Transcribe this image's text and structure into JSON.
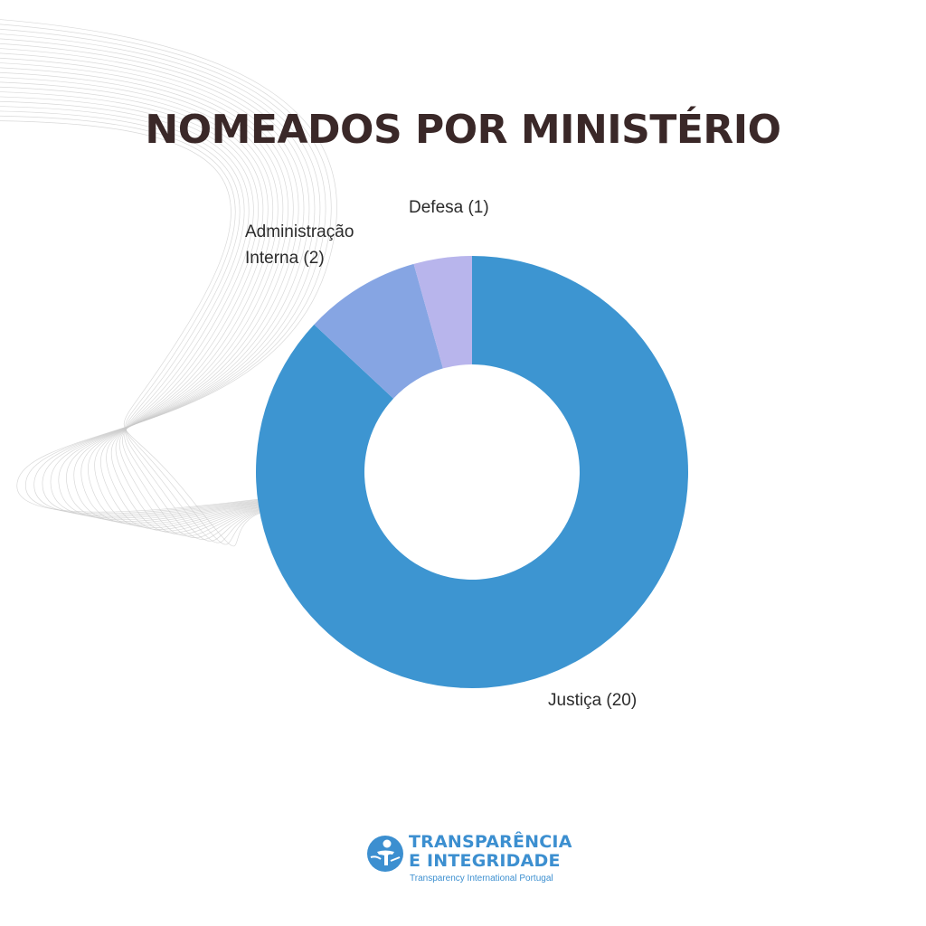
{
  "title": "NOMEADOS POR MINISTÉRIO",
  "chart_data": {
    "type": "pie",
    "variant": "donut",
    "title": "NOMEADOS POR MINISTÉRIO",
    "categories": [
      "Justiça",
      "Administração Interna",
      "Defesa"
    ],
    "values": [
      20,
      2,
      1
    ],
    "labels": [
      "Justiça (20)",
      "Administração Interna (2)",
      "Defesa (1)"
    ],
    "colors": [
      "#3d95d1",
      "#86a5e3",
      "#b8b5ec"
    ],
    "legend": "none"
  },
  "logo": {
    "line1": "TRANSPARÊNCIA",
    "line2": "E INTEGRIDADE",
    "subtitle": "Transparency International Portugal",
    "color": "#3c8fd0"
  }
}
